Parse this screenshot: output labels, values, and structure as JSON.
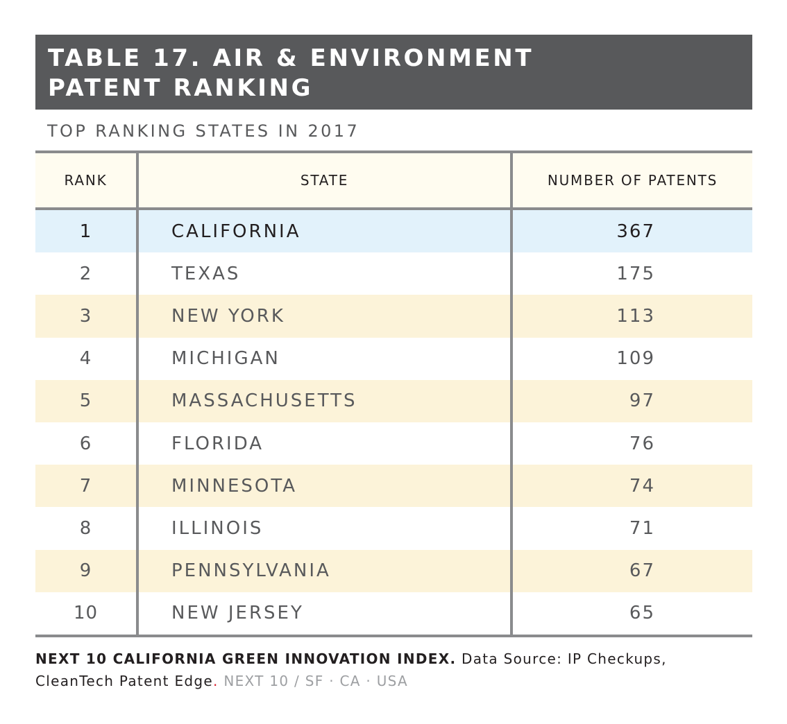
{
  "header": {
    "title_line_1": "TABLE 17. AIR & ENVIRONMENT",
    "title_line_2": "PATENT RANKING",
    "subtitle": "TOP RANKING STATES IN 2017"
  },
  "chart_data": {
    "type": "table",
    "title": "TABLE 17. AIR & ENVIRONMENT PATENT RANKING",
    "subtitle": "TOP RANKING STATES IN 2017",
    "columns": [
      "RANK",
      "STATE",
      "NUMBER OF PATENTS"
    ],
    "rows": [
      [
        "1",
        "CALIFORNIA",
        "367"
      ],
      [
        "2",
        "TEXAS",
        "175"
      ],
      [
        "3",
        "NEW YORK",
        "113"
      ],
      [
        "4",
        "MICHIGAN",
        "109"
      ],
      [
        "5",
        "MASSACHUSETTS",
        "97"
      ],
      [
        "6",
        "FLORIDA",
        "76"
      ],
      [
        "7",
        "MINNESOTA",
        "74"
      ],
      [
        "8",
        "ILLINOIS",
        "71"
      ],
      [
        "9",
        "PENNSYLVANIA",
        "67"
      ],
      [
        "10",
        "NEW JERSEY",
        "65"
      ]
    ]
  },
  "footer": {
    "bold_text": "NEXT 10 CALIFORNIA GREEN INNOVATION INDEX.",
    "source_text": " Data Source: IP Checkups,",
    "source_line_2": "CleanTech Patent Edge",
    "dot": ".",
    "org": " NEXT 10 / SF · CA · USA"
  },
  "colors": {
    "title_bar": "#58595b",
    "header_row": "#fffcf0",
    "highlight_row": "#e2f2fb",
    "alt_row": "#fcf3d9",
    "rule": "#8a8b8d",
    "accent_dot": "#d81e2c"
  }
}
